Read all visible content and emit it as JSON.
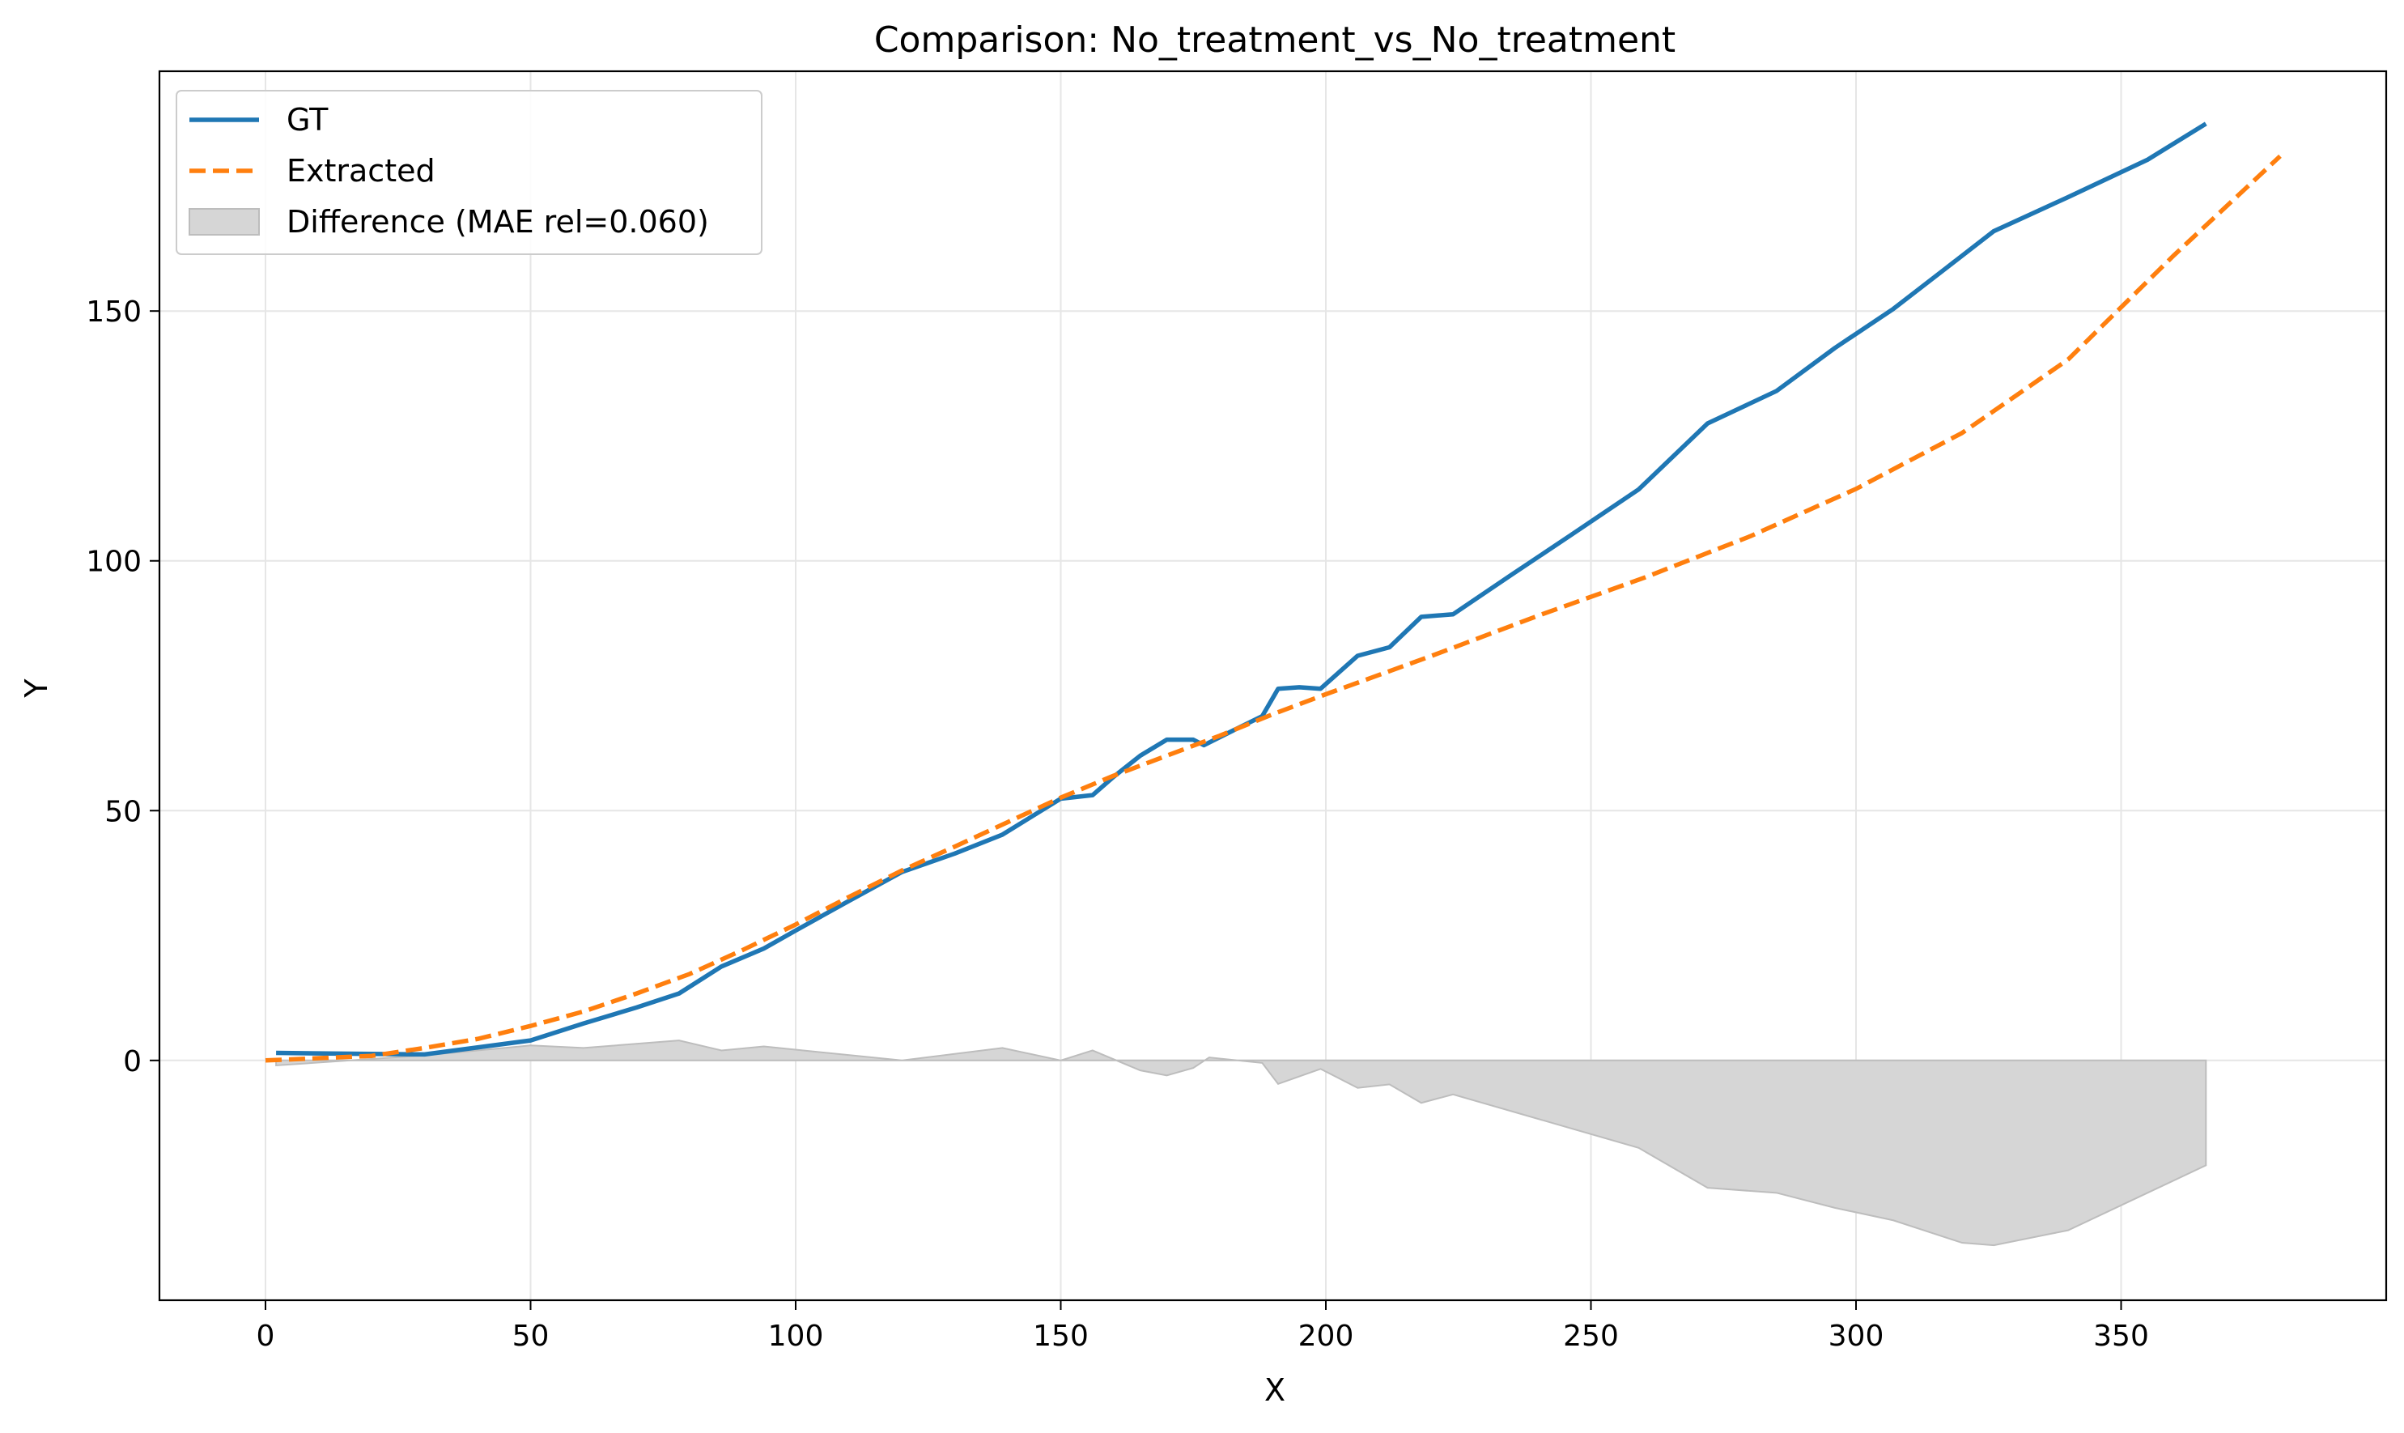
{
  "chart_data": {
    "type": "line",
    "title": "Comparison: No_treatment_vs_No_treatment",
    "xlabel": "X",
    "ylabel": "Y",
    "xlim": [
      -20,
      400
    ],
    "ylim": [
      -48,
      198
    ],
    "x_ticks": [
      0,
      50,
      100,
      150,
      200,
      250,
      300,
      350
    ],
    "y_ticks": [
      0,
      50,
      100,
      150
    ],
    "grid": true,
    "legend_position": "top-left",
    "series": [
      {
        "name": "GT",
        "style": "solid",
        "color": "#1f77b4",
        "x": [
          2,
          10,
          20,
          30,
          40,
          50,
          60,
          70,
          78,
          86,
          94,
          100,
          110,
          120,
          130,
          139,
          150,
          156,
          160,
          165,
          170,
          175,
          177,
          183,
          188,
          191,
          195,
          199,
          206,
          212,
          218,
          224,
          235,
          246,
          259,
          272,
          285,
          296,
          307,
          317,
          326,
          340,
          355,
          366
        ],
        "y": [
          1.5,
          1.4,
          1.3,
          1.2,
          2.6,
          4.0,
          7.4,
          10.6,
          13.4,
          18.8,
          22.4,
          26.0,
          31.9,
          37.7,
          41.4,
          45.2,
          52.4,
          53.1,
          56.8,
          61.0,
          64.2,
          64.2,
          63.1,
          66.3,
          68.9,
          74.4,
          74.7,
          74.4,
          81.0,
          82.7,
          88.8,
          89.3,
          97.2,
          105.0,
          114.3,
          127.5,
          134.0,
          142.6,
          150.4,
          158.6,
          166.0,
          172.8,
          180.3,
          187.5
        ]
      },
      {
        "name": "Extracted",
        "style": "dashed",
        "color": "#ff7f0e",
        "x": [
          0,
          20,
          30,
          40,
          50,
          60,
          70,
          80,
          90,
          100,
          110,
          120,
          130,
          140,
          150,
          160,
          170,
          180,
          190,
          200,
          220,
          240,
          260,
          280,
          300,
          320,
          340,
          360,
          380
        ],
        "y": [
          0.0,
          0.9,
          2.5,
          4.3,
          6.9,
          9.8,
          13.4,
          17.3,
          22.1,
          27.2,
          32.7,
          38.0,
          42.8,
          47.7,
          52.6,
          57.0,
          61.0,
          65.0,
          69.3,
          73.3,
          81.0,
          89.0,
          96.6,
          104.9,
          114.4,
          125.6,
          140.3,
          161.2,
          181.0
        ]
      },
      {
        "name": "Difference (MAE rel=0.060)",
        "style": "fill",
        "color": "#d6d6d6",
        "x": [
          2,
          30,
          50,
          60,
          78,
          86,
          94,
          120,
          139,
          150,
          156,
          165,
          170,
          175,
          178,
          188,
          191,
          199,
          206,
          212,
          218,
          224,
          259,
          272,
          285,
          296,
          307,
          320,
          326,
          340,
          366
        ],
        "y": [
          -1.0,
          1.0,
          3.0,
          2.5,
          4.0,
          2.0,
          2.8,
          0.0,
          2.5,
          0.0,
          2.0,
          -2.0,
          -3.0,
          -1.5,
          0.6,
          -0.5,
          -4.7,
          -1.7,
          -5.5,
          -4.8,
          -8.5,
          -6.8,
          -17.5,
          -25.5,
          -26.5,
          -29.5,
          -32.0,
          -36.5,
          -37.0,
          -34.0,
          -21.0
        ]
      }
    ]
  }
}
